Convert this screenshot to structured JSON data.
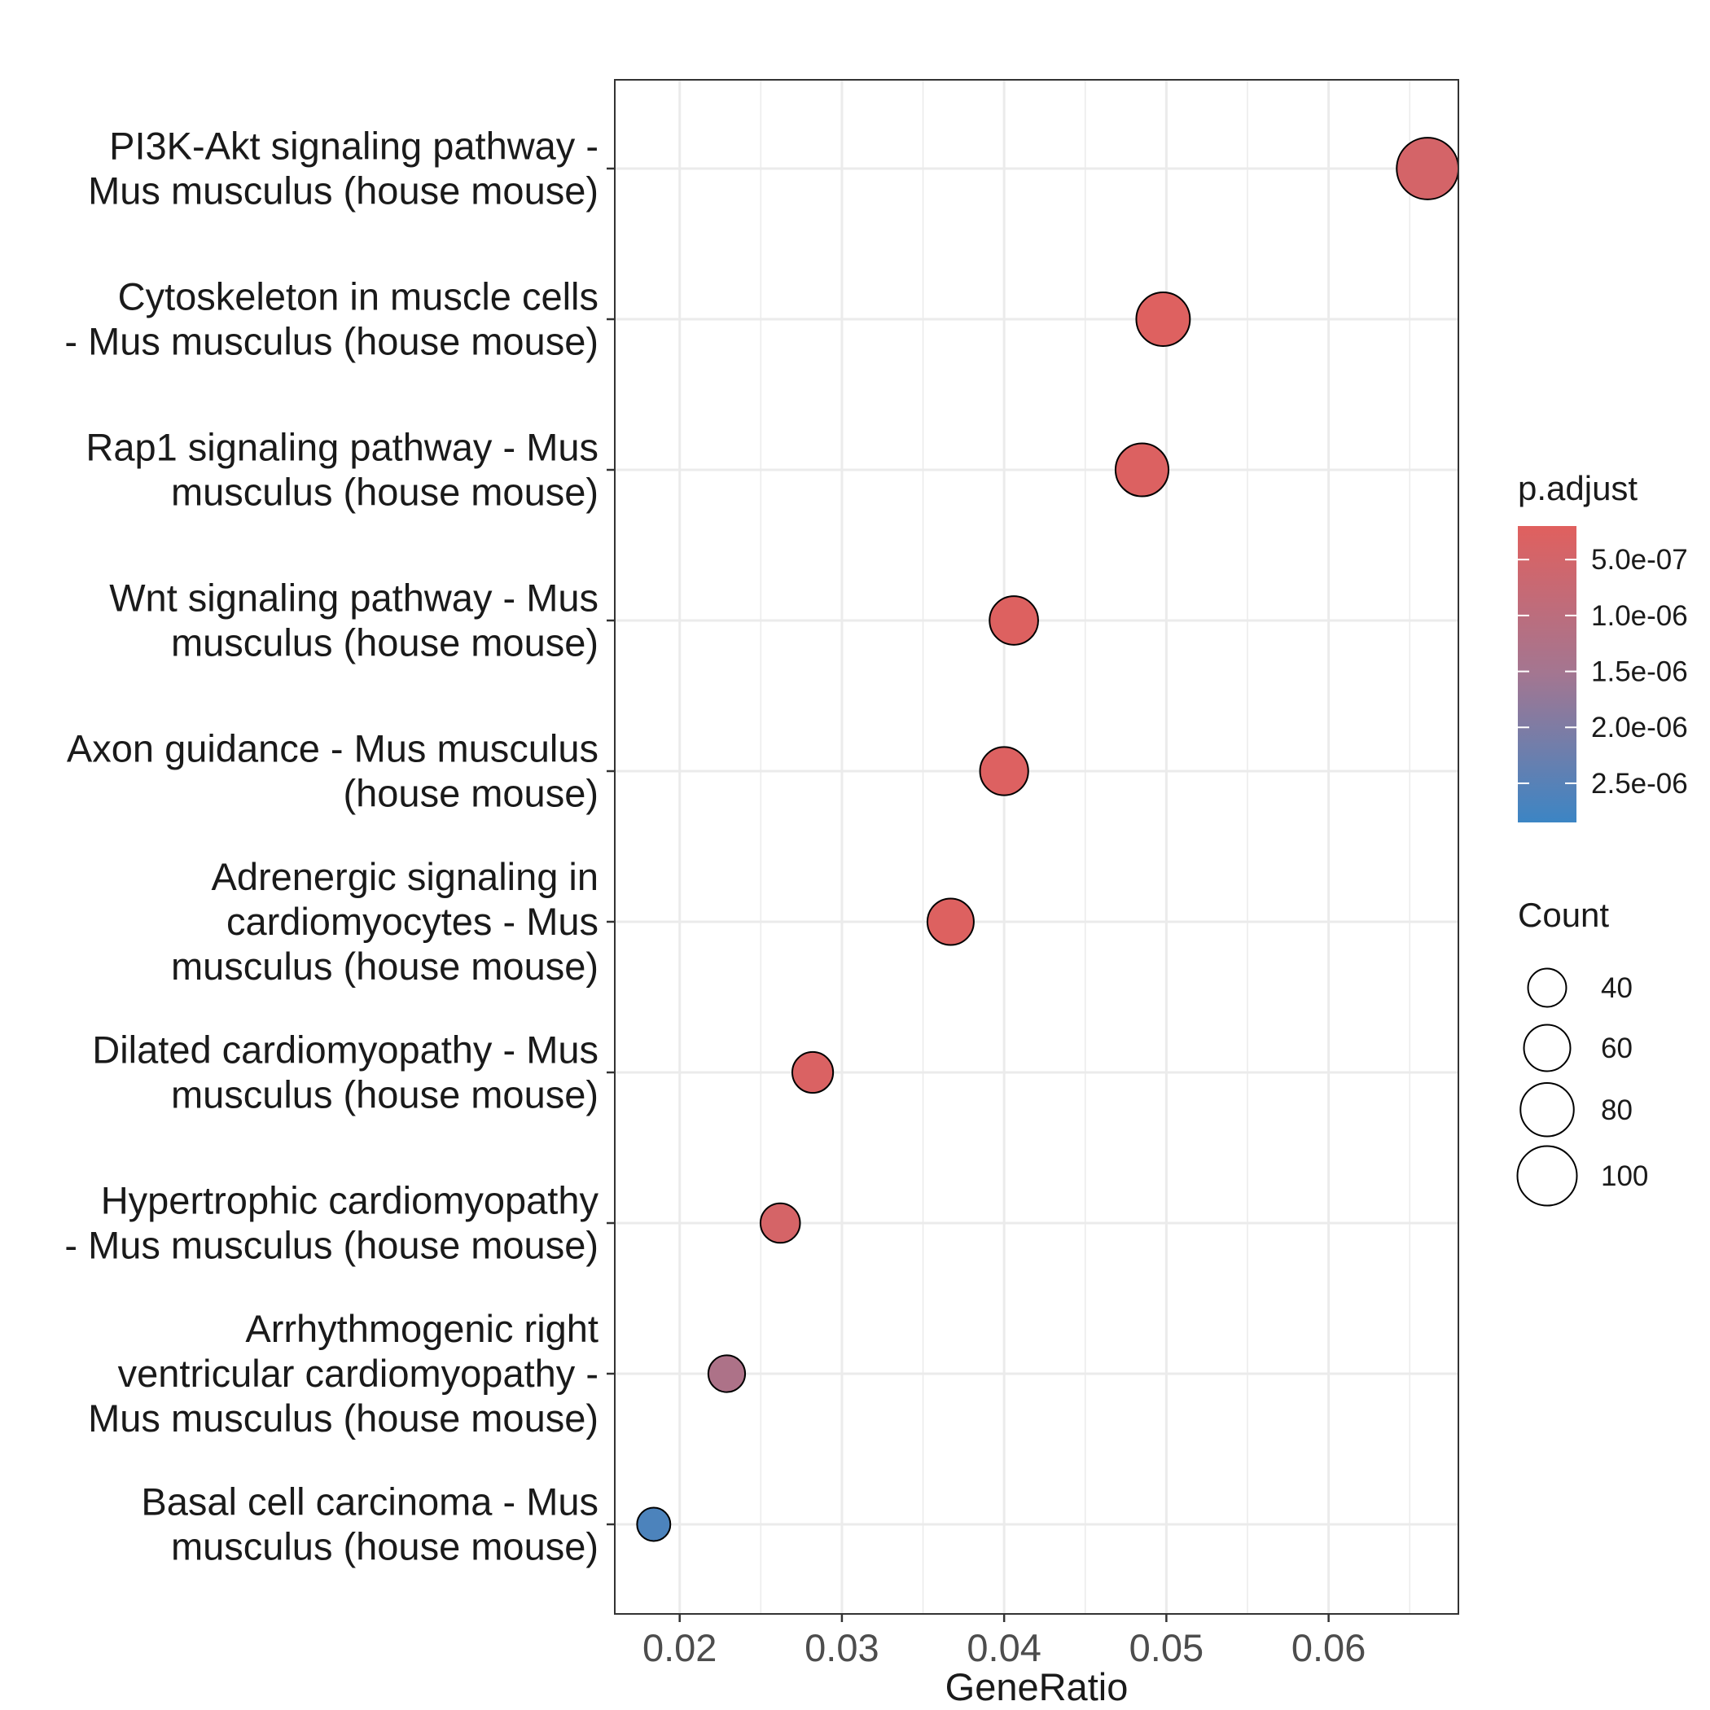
{
  "chart_data": {
    "type": "scatter",
    "xlabel": "GeneRatio",
    "ylabel": "",
    "xlim": [
      0.016,
      0.068
    ],
    "x_ticks": [
      0.02,
      0.03,
      0.04,
      0.05,
      0.06
    ],
    "x_tick_labels": [
      "0.02",
      "0.03",
      "0.04",
      "0.05",
      "0.06"
    ],
    "grid": true,
    "categories": [
      "PI3K-Akt signaling pathway - Mus musculus (house mouse)",
      "Cytoskeleton in muscle cells - Mus musculus (house mouse)",
      "Rap1 signaling pathway - Mus musculus (house mouse)",
      "Wnt signaling pathway - Mus musculus (house mouse)",
      "Axon guidance - Mus musculus (house mouse)",
      "Adrenergic signaling in cardiomyocytes - Mus musculus (house mouse)",
      "Dilated cardiomyopathy - Mus musculus (house mouse)",
      "Hypertrophic cardiomyopathy - Mus musculus (house mouse)",
      "Arrhythmogenic right ventricular cardiomyopathy - Mus musculus (house mouse)",
      "Basal cell carcinoma - Mus musculus (house mouse)"
    ],
    "category_label_lines": [
      [
        "PI3K-Akt signaling pathway -",
        "Mus musculus (house mouse)"
      ],
      [
        "Cytoskeleton in muscle cells",
        "- Mus musculus (house mouse)"
      ],
      [
        "Rap1 signaling pathway - Mus",
        "musculus (house mouse)"
      ],
      [
        "Wnt signaling pathway - Mus",
        "musculus (house mouse)"
      ],
      [
        "Axon guidance - Mus musculus",
        "(house mouse)"
      ],
      [
        "Adrenergic signaling in",
        "cardiomyocytes - Mus",
        "musculus (house mouse)"
      ],
      [
        "Dilated cardiomyopathy - Mus",
        "musculus (house mouse)"
      ],
      [
        "Hypertrophic cardiomyopathy",
        "- Mus musculus (house mouse)"
      ],
      [
        "Arrhythmogenic right",
        "ventricular cardiomyopathy -",
        "Mus musculus (house mouse)"
      ],
      [
        "Basal cell carcinoma - Mus",
        "musculus (house mouse)"
      ]
    ],
    "gene_ratio": [
      0.0661,
      0.0498,
      0.0485,
      0.0406,
      0.04,
      0.0367,
      0.0282,
      0.0262,
      0.0229,
      0.0184
    ],
    "count": [
      108,
      81,
      79,
      66,
      65,
      60,
      46,
      43,
      37,
      30
    ],
    "p_adjust": [
      4.5e-07,
      2.5e-07,
      2.8e-07,
      2.6e-07,
      2.7e-07,
      2.6e-07,
      3.2e-07,
      4.3e-07,
      1.3e-06,
      2.65e-06
    ],
    "legend": {
      "placement": "right",
      "color": {
        "title": "p.adjust",
        "domain": [
          2e-07,
          2.85e-06
        ],
        "breaks": [
          5e-07,
          1e-06,
          1.5e-06,
          2e-06,
          2.5e-06
        ],
        "labels": [
          "5.0e-07",
          "1.0e-06",
          "1.5e-06",
          "2.0e-06",
          "2.5e-06"
        ],
        "low_value_color": "#E0605E",
        "high_value_color": "#3C85C4"
      },
      "size": {
        "title": "Count",
        "breaks": [
          40,
          60,
          80,
          100
        ],
        "labels": [
          "40",
          "60",
          "80",
          "100"
        ]
      }
    },
    "colors": {
      "grid": "#EBEBEB",
      "panel_border": "#333333",
      "point_stroke": "#000000"
    }
  }
}
